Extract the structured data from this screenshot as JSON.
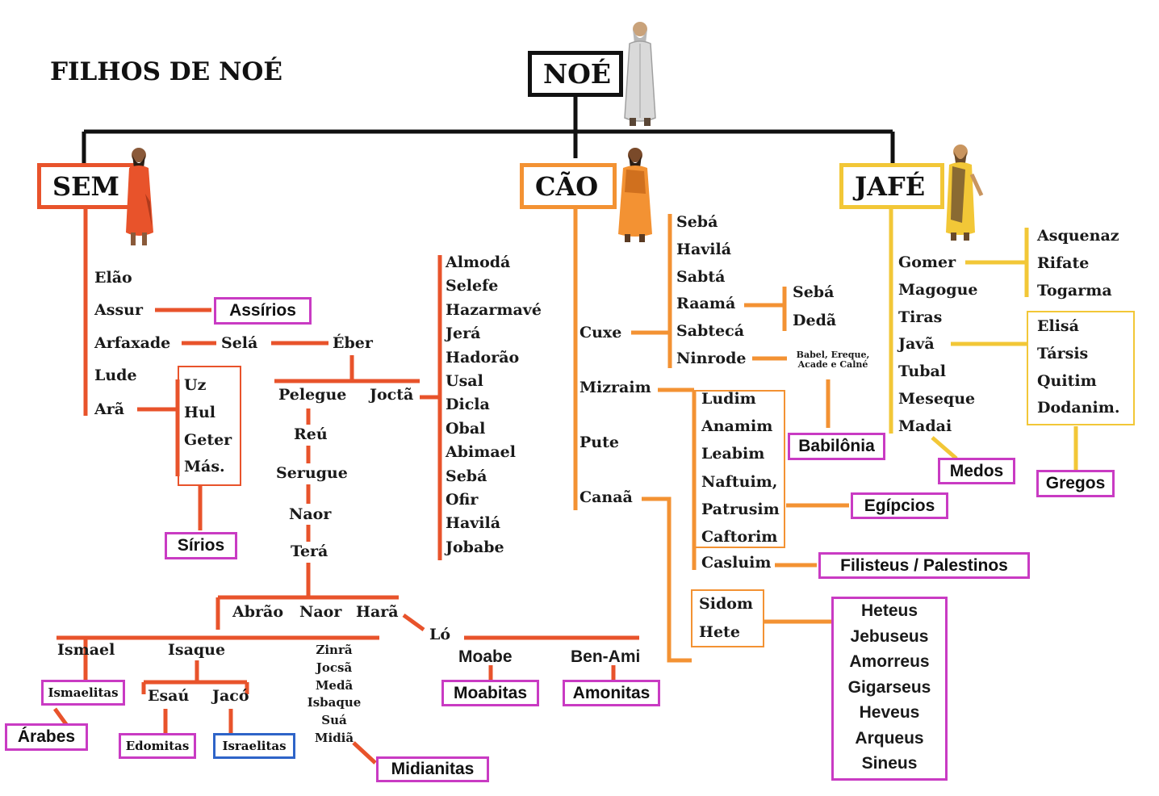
{
  "title": "FILHOS DE NOÉ",
  "colors": {
    "sem": "#e8532b",
    "cao": "#f39233",
    "jafe": "#f2c737",
    "group_box": "#c93bc3",
    "israel_box": "#2e64c8",
    "root": "#111111"
  },
  "root": {
    "label": "NOÉ"
  },
  "sem": {
    "label": "SEM",
    "sons": [
      "Elão",
      "Assur",
      "Arfaxade",
      "Lude",
      "Arã"
    ],
    "assur_people": "Assírios",
    "sela": "Selá",
    "eber": "Éber",
    "aram_sons": [
      "Uz",
      "Hul",
      "Geter",
      "Más."
    ],
    "aram_people": "Sírios",
    "peleg": "Pelegue",
    "joktan": "Joctã",
    "peleg_line": [
      "Reú",
      "Serugue",
      "Naor",
      "Terá"
    ],
    "joktan_sons": [
      "Almodá",
      "Selefe",
      "Hazarmavé",
      "Jerá",
      "Hadorão",
      "Usal",
      "Dicla",
      "Obal",
      "Abimael",
      "Sebá",
      "Ofir",
      "Havilá",
      "Jobabe"
    ],
    "terah_sons": {
      "abrao": "Abrão",
      "naor": "Naor",
      "hara": "Harã"
    },
    "lot": "Ló",
    "lot_sons": {
      "moab": "Moabe",
      "benami": "Ben-Ami"
    },
    "lot_people": {
      "moab": "Moabitas",
      "benami": "Amonitas"
    },
    "ismael": "Ismael",
    "isaque": "Isaque",
    "ismael_people": "Ismaelitas",
    "arab_people": "Árabes",
    "esau": "Esaú",
    "jaco": "Jacó",
    "esau_people": "Edomitas",
    "jaco_people": "Israelitas",
    "keturah_sons": [
      "Zinrã",
      "Jocsã",
      "Medã",
      "Isbaque",
      "Suá",
      "Midiã"
    ],
    "midian_people": "Midianitas"
  },
  "cao": {
    "label": "CÃO",
    "sons": {
      "cuxe": "Cuxe",
      "mizraim": "Mizraim",
      "pute": "Pute",
      "canaa": "Canaã"
    },
    "cush_sons": [
      "Sebá",
      "Havilá",
      "Sabtá",
      "Raamá",
      "Sabtecá",
      "Ninrode"
    ],
    "raama_sons": [
      "Sebá",
      "Dedã"
    ],
    "nimrod_cities": "Babel, Ereque, Acade e Calné",
    "nimrod_people": "Babilônia",
    "mizraim_sons": [
      "Ludim",
      "Anamim",
      "Leabim",
      "Naftuim,",
      "Patrusim",
      "Caftorim"
    ],
    "casluim": "Casluim",
    "egypt_people": "Egípcios",
    "philistine_people": "Filisteus / Palestinos",
    "canaan_sons": [
      "Sidom",
      "Hete"
    ],
    "canaan_people": [
      "Heteus",
      "Jebuseus",
      "Amorreus",
      "Gigarseus",
      "Heveus",
      "Arqueus",
      "Sineus"
    ]
  },
  "jafe": {
    "label": "JAFÉ",
    "sons": [
      "Gomer",
      "Magogue",
      "Tiras",
      "Javã",
      "Tubal",
      "Meseque",
      "Madai"
    ],
    "gomer_sons": [
      "Asquenaz",
      "Rifate",
      "Togarma"
    ],
    "javan_sons": [
      "Elisá",
      "Társis",
      "Quitim",
      "Dodanim."
    ],
    "madai_people": "Medos",
    "javan_people": "Gregos"
  }
}
